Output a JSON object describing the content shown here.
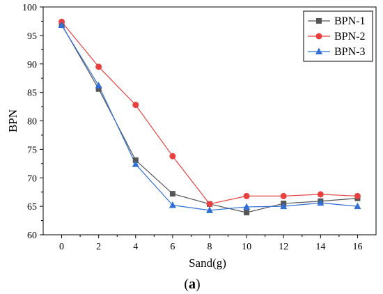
{
  "chart_data": {
    "type": "line",
    "xlabel": "Sand(g)",
    "ylabel": "BPN",
    "xlim": [
      -1,
      17
    ],
    "ylim": [
      60,
      100
    ],
    "xticks": [
      0,
      2,
      4,
      6,
      8,
      10,
      12,
      14,
      16
    ],
    "yticks": [
      60,
      65,
      70,
      75,
      80,
      85,
      90,
      95,
      100
    ],
    "grid": false,
    "legend_position": "top-right",
    "x": [
      0,
      2,
      4,
      6,
      8,
      10,
      12,
      14,
      16
    ],
    "series": [
      {
        "name": "BPN-1",
        "marker": "square",
        "color": "#555555",
        "values": [
          96.9,
          85.6,
          73.1,
          67.2,
          65.4,
          63.9,
          65.5,
          65.9,
          66.4
        ]
      },
      {
        "name": "BPN-2",
        "marker": "circle",
        "color": "#e8403e",
        "values": [
          97.4,
          89.5,
          82.8,
          73.8,
          65.4,
          66.8,
          66.8,
          67.1,
          66.8
        ]
      },
      {
        "name": "BPN-3",
        "marker": "triangle",
        "color": "#2f6fd6",
        "values": [
          96.8,
          86.2,
          72.4,
          65.2,
          64.3,
          64.9,
          65.0,
          65.6,
          65.0
        ]
      }
    ]
  },
  "caption": {
    "open": "(",
    "letter": "a",
    "close": ")"
  }
}
